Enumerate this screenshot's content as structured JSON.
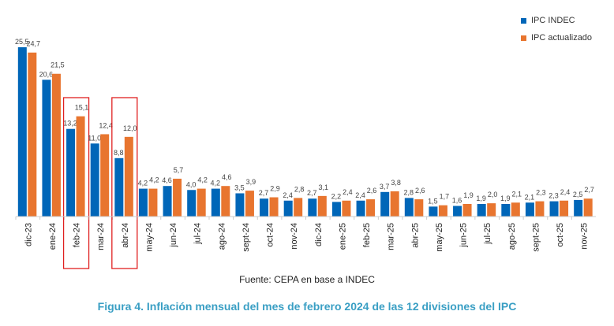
{
  "chart_data": {
    "type": "bar",
    "categories": [
      "dic-23",
      "ene-24",
      "feb-24",
      "mar-24",
      "abr-24",
      "may-24",
      "jun-24",
      "jul-24",
      "ago-24",
      "sept-24",
      "oct-24",
      "nov-24",
      "dic-24",
      "ene-25",
      "feb-25",
      "mar-25",
      "abr-25",
      "may-25",
      "jun-25",
      "jul-25",
      "ago-25",
      "sept-25",
      "oct-25",
      "nov-25"
    ],
    "series": [
      {
        "name": "IPC INDEC",
        "color": "#0066b8",
        "values": [
          25.5,
          20.6,
          13.2,
          11.0,
          8.8,
          4.2,
          4.6,
          4.0,
          4.2,
          3.5,
          2.7,
          2.4,
          2.7,
          2.2,
          2.4,
          3.7,
          2.8,
          1.5,
          1.6,
          1.9,
          1.9,
          2.1,
          2.3,
          2.5
        ]
      },
      {
        "name": "IPC actualizado",
        "color": "#e8752f",
        "values": [
          24.7,
          21.5,
          15.1,
          12.4,
          12.0,
          4.2,
          5.7,
          4.2,
          4.6,
          3.9,
          2.9,
          2.8,
          3.1,
          2.4,
          2.6,
          3.8,
          2.6,
          1.7,
          1.9,
          2.0,
          2.1,
          2.3,
          2.4,
          2.7
        ]
      }
    ],
    "highlighted_categories": [
      "feb-24",
      "abr-24"
    ],
    "highlight_color": "#e02020",
    "data_labels": true,
    "decimal_separator": ",",
    "legend_position": "top-right",
    "grid": false,
    "ylim": [
      0,
      26
    ]
  },
  "source": "Fuente: CEPA en base a INDEC",
  "caption": "Figura 4. Inflación mensual del mes de febrero 2024 de las 12 divisiones del IPC"
}
